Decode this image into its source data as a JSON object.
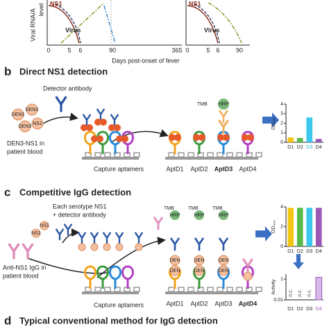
{
  "figure": {
    "top": {
      "ylabel_1": "Viral RNA/A",
      "ylabel_2": "level",
      "left_ns1": "NS1",
      "left_virus": "Virus",
      "right_ns1": "NS1",
      "right_virus": "Virus",
      "left_ticks": [
        "0",
        "5",
        "6",
        "90",
        "365"
      ],
      "right_ticks": [
        "0",
        "5",
        "6",
        "90"
      ],
      "xlabel": "Days post-onset of fever"
    },
    "b": {
      "letter": "b",
      "title": "Direct NS1 detection",
      "detector": "Detector antibody",
      "blood_1": "DEN3-NS1 in",
      "blood_2": "patient blood",
      "ns1": "NS1",
      "den": "DEN3",
      "capture": "Capture aptamers",
      "apts": [
        "AptD1",
        "AptD2",
        "AptD3",
        "AptD4"
      ],
      "tmb": "TMB",
      "hrp": "HRP",
      "od": "OD₄₅₀"
    },
    "c": {
      "letter": "c",
      "title": "Competitive IgG detection",
      "each_1": "Each serotype NS1",
      "each_2": "+ detector antibody",
      "ns1": "NS1",
      "blood_1": "Anti-NS1 IgG in",
      "blood_2": "patient blood",
      "capture": "Capture aptamers",
      "apts": [
        "AptD1",
        "AptD2",
        "AptD3",
        "AptD4"
      ],
      "tmb": "TMB",
      "hrp": "HRP",
      "den": "DEN"
    },
    "d": {
      "letter": "d",
      "title": "Typical conventional method for IgG detection"
    }
  },
  "chart_data": [
    {
      "type": "bar",
      "ylabel": "OD₄₅₀",
      "categories": [
        "D1",
        "D2",
        "D3",
        "D4"
      ],
      "category_colors": [
        "#222222",
        "#222222",
        "#2aa8d8",
        "#222222"
      ],
      "values": [
        0.5,
        0.45,
        2.6,
        0.35
      ],
      "colors": [
        "#f2c511",
        "#57b947",
        "#3cc8ec",
        "#9b59b6"
      ],
      "ylim": [
        0,
        4
      ],
      "yticks": [
        0,
        1,
        2,
        3,
        4
      ],
      "log": false
    },
    {
      "type": "bar",
      "ylabel": "OD₄₅₀",
      "categories": [
        "D1",
        "D2",
        "D3",
        "D4"
      ],
      "category_colors": [
        "#222222",
        "#222222",
        "#222222",
        "#222222"
      ],
      "values": [
        3.9,
        3.9,
        3.9,
        3.9
      ],
      "colors": [
        "#f2c511",
        "#57b947",
        "#3cc8ec",
        "#9b59b6"
      ],
      "ylim": [
        0,
        4
      ],
      "yticks": [
        0,
        2,
        4
      ],
      "log": false
    },
    {
      "type": "bar",
      "ylabel": "Activity",
      "categories": [
        "D1",
        "D2",
        "D3",
        "D4"
      ],
      "category_colors": [
        "#222222",
        "#222222",
        "#222222",
        "#9b59b6"
      ],
      "values": [
        null,
        null,
        null,
        1.5
      ],
      "value_labels": [
        "n.c.",
        "n.c.",
        "n.c.",
        null
      ],
      "colors": [
        "#f2c511",
        "#57b947",
        "#3cc8ec",
        "#d9b8ea"
      ],
      "ylim": [
        0.01,
        3
      ],
      "yticks": [
        0.01,
        1
      ],
      "log": true
    }
  ]
}
